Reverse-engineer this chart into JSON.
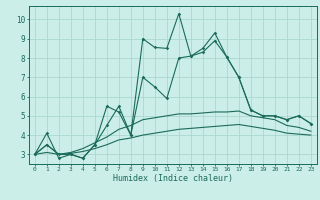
{
  "xlabel": "Humidex (Indice chaleur)",
  "bg_color": "#cceee8",
  "line_color": "#1a6b5a",
  "grid_color": "#aad8d0",
  "xlim": [
    -0.5,
    23.5
  ],
  "ylim": [
    2.5,
    10.7
  ],
  "yticks": [
    3,
    4,
    5,
    6,
    7,
    8,
    9,
    10
  ],
  "xticks": [
    0,
    1,
    2,
    3,
    4,
    5,
    6,
    7,
    8,
    9,
    10,
    11,
    12,
    13,
    14,
    15,
    16,
    17,
    18,
    19,
    20,
    21,
    22,
    23
  ],
  "series": [
    [
      3.0,
      4.1,
      2.8,
      3.0,
      2.8,
      3.5,
      5.5,
      5.2,
      4.0,
      9.0,
      8.55,
      8.5,
      10.3,
      8.1,
      8.5,
      9.3,
      8.05,
      7.0,
      5.3,
      5.0,
      5.0,
      4.8,
      5.0,
      4.6
    ],
    [
      3.0,
      3.5,
      3.0,
      3.0,
      2.8,
      3.5,
      4.5,
      5.5,
      4.0,
      7.0,
      6.5,
      5.9,
      8.0,
      8.1,
      8.3,
      8.9,
      8.05,
      7.0,
      5.3,
      5.0,
      5.0,
      4.8,
      5.0,
      4.6
    ],
    [
      3.0,
      3.5,
      3.0,
      3.1,
      3.3,
      3.6,
      3.9,
      4.3,
      4.5,
      4.8,
      4.9,
      5.0,
      5.1,
      5.1,
      5.15,
      5.2,
      5.2,
      5.25,
      5.0,
      4.9,
      4.8,
      4.5,
      4.4,
      4.2
    ],
    [
      3.0,
      3.1,
      3.0,
      3.05,
      3.15,
      3.3,
      3.5,
      3.75,
      3.85,
      4.0,
      4.1,
      4.2,
      4.3,
      4.35,
      4.4,
      4.45,
      4.5,
      4.55,
      4.45,
      4.35,
      4.25,
      4.1,
      4.05,
      4.0
    ]
  ],
  "marker_series": 0
}
